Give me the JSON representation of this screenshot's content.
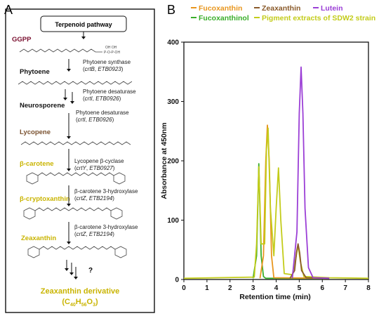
{
  "panel_a": {
    "letter": "A",
    "pathway_box": "Terpenoid pathway",
    "question_mark": "?",
    "compounds": [
      {
        "name": "GGPP",
        "color": "#7a1030"
      },
      {
        "name": "Phytoene",
        "color": "#111111"
      },
      {
        "name": "Neurosporene",
        "color": "#111111"
      },
      {
        "name": "Lycopene",
        "color": "#7a5230"
      },
      {
        "name": "β-carotene",
        "color": "#c9b400"
      },
      {
        "name": "β-cryptoxanthin",
        "color": "#c9b400"
      },
      {
        "name": "Zeaxanthin",
        "color": "#c9b400"
      }
    ],
    "steps": [
      {
        "enzyme": "Phytoene synthase",
        "gene": "crtB",
        "locus": "ETB0923"
      },
      {
        "enzyme": "Phytoene desaturase",
        "gene": "crtI",
        "locus": "ETB0926"
      },
      {
        "enzyme": "Phytoene desaturase",
        "gene": "crtI",
        "locus": "ETB0926"
      },
      {
        "enzyme": "Lycopene β-cyclase",
        "gene": "crtY",
        "locus": "ETB0927"
      },
      {
        "enzyme": "β-carotene 3-hydroxylase",
        "gene": "crtZ",
        "locus": "ETB2194"
      },
      {
        "enzyme": "β-carotene 3-hydroxylase",
        "gene": "crtZ",
        "locus": "ETB2194"
      }
    ],
    "derivative": {
      "name": "Zeaxanthin derivative",
      "formula_main": "C",
      "sub1": "40",
      "mid": "H",
      "sub2": "56",
      "mid2": "O",
      "sub3": "3",
      "color": "#c9b400"
    }
  },
  "panel_b": {
    "letter": "B",
    "legend": [
      {
        "name": "Fucoxanthin",
        "color": "#e8961e"
      },
      {
        "name": "Zeaxanthin",
        "color": "#8a5a2a"
      },
      {
        "name": "Lutein",
        "color": "#9b3fd6"
      },
      {
        "name": "Fucoxanthinol",
        "color": "#3aae2a"
      },
      {
        "name": "Pigment extracts of SDW2 strain",
        "color": "#c3cc1a"
      }
    ]
  },
  "chart_data": {
    "type": "line",
    "xlabel": "Retention time (min)",
    "ylabel": "Absorbance at 450nm",
    "xlim": [
      0,
      8
    ],
    "ylim": [
      0,
      400
    ],
    "xticks": [
      0,
      1,
      2,
      3,
      4,
      5,
      6,
      7,
      8
    ],
    "yticks": [
      0,
      100,
      200,
      300,
      400
    ],
    "series": [
      {
        "name": "Fucoxanthinol",
        "color": "#3aae2a",
        "x": [
          3.0,
          3.15,
          3.25,
          3.35,
          3.45,
          3.55,
          6.3
        ],
        "y": [
          2,
          40,
          195,
          40,
          5,
          2,
          2
        ]
      },
      {
        "name": "Fucoxanthin",
        "color": "#e8961e",
        "x": [
          3.3,
          3.45,
          3.55,
          3.62,
          3.7,
          3.8,
          3.9,
          6.3
        ],
        "y": [
          2,
          40,
          200,
          260,
          200,
          40,
          3,
          2
        ]
      },
      {
        "name": "Pigment extracts of SDW2 strain",
        "color": "#c3cc1a",
        "x": [
          0,
          3.05,
          3.15,
          3.25,
          3.35,
          3.5,
          3.58,
          3.65,
          3.75,
          3.9,
          4.0,
          4.1,
          4.2,
          4.35,
          4.7,
          4.85,
          4.95,
          5.05,
          5.2,
          6.3,
          8
        ],
        "y": [
          2,
          4,
          60,
          190,
          60,
          60,
          220,
          255,
          120,
          40,
          120,
          188,
          100,
          10,
          8,
          35,
          58,
          30,
          5,
          3,
          2
        ]
      },
      {
        "name": "Zeaxanthin",
        "color": "#8a5a2a",
        "x": [
          4.6,
          4.8,
          4.88,
          4.95,
          5.02,
          5.1,
          5.3,
          6.3
        ],
        "y": [
          2,
          15,
          45,
          60,
          45,
          15,
          3,
          2
        ]
      },
      {
        "name": "Lutein",
        "color": "#9b3fd6",
        "x": [
          4.7,
          4.9,
          5.0,
          5.08,
          5.16,
          5.25,
          5.4,
          5.6,
          6.3
        ],
        "y": [
          2,
          80,
          280,
          358,
          280,
          120,
          20,
          3,
          2
        ]
      }
    ]
  }
}
